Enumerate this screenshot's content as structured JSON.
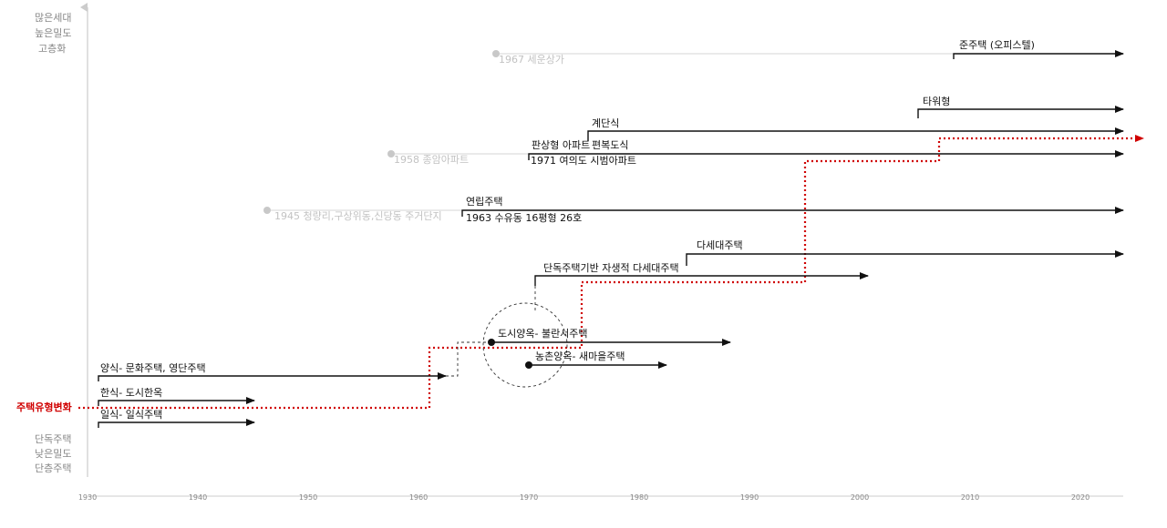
{
  "axis": {
    "y_top_label": [
      "많은세대",
      "높은밀도",
      "고층화"
    ],
    "y_bottom_label": [
      "단독주택",
      "낮은밀도",
      "단층주택"
    ],
    "ticks": [
      "1930",
      "1940",
      "1950",
      "1960",
      "1970",
      "1980",
      "1990",
      "2000",
      "2010",
      "2020"
    ]
  },
  "highlight_label": "주택유형변화",
  "colors": {
    "highlight": "#d00000",
    "line": "#111111",
    "muted": "#c2c2c2",
    "axis": "#cccccc"
  },
  "labels": {
    "junjutaek": "준주택 (오피스텔)",
    "sewoon": "1967 세운상가",
    "tower": "타워형",
    "stair": "계단식",
    "panel": "판상형 아파트",
    "corridor": "편복도식",
    "jongam": "1958 종암아파트",
    "yeouido": "1971 여의도 시범아파트",
    "yeonrip": "연립주택",
    "suyu": "1963 수유동 16평형 26호",
    "cheongnyang": "1945 청량리,구상위동,신당동 주거단지",
    "dasedae": "다세대주택",
    "danok_dasedae": "단독주택기반 자생적 다세대주택",
    "dosi_yangok": "도시양옥- 불란서주택",
    "nongchon_yangok": "농촌양옥- 새마을주택",
    "yangsik": "양식- 문화주택, 영단주택",
    "hansik": "한식- 도시한옥",
    "ilsik": "일식- 일식주택"
  }
}
